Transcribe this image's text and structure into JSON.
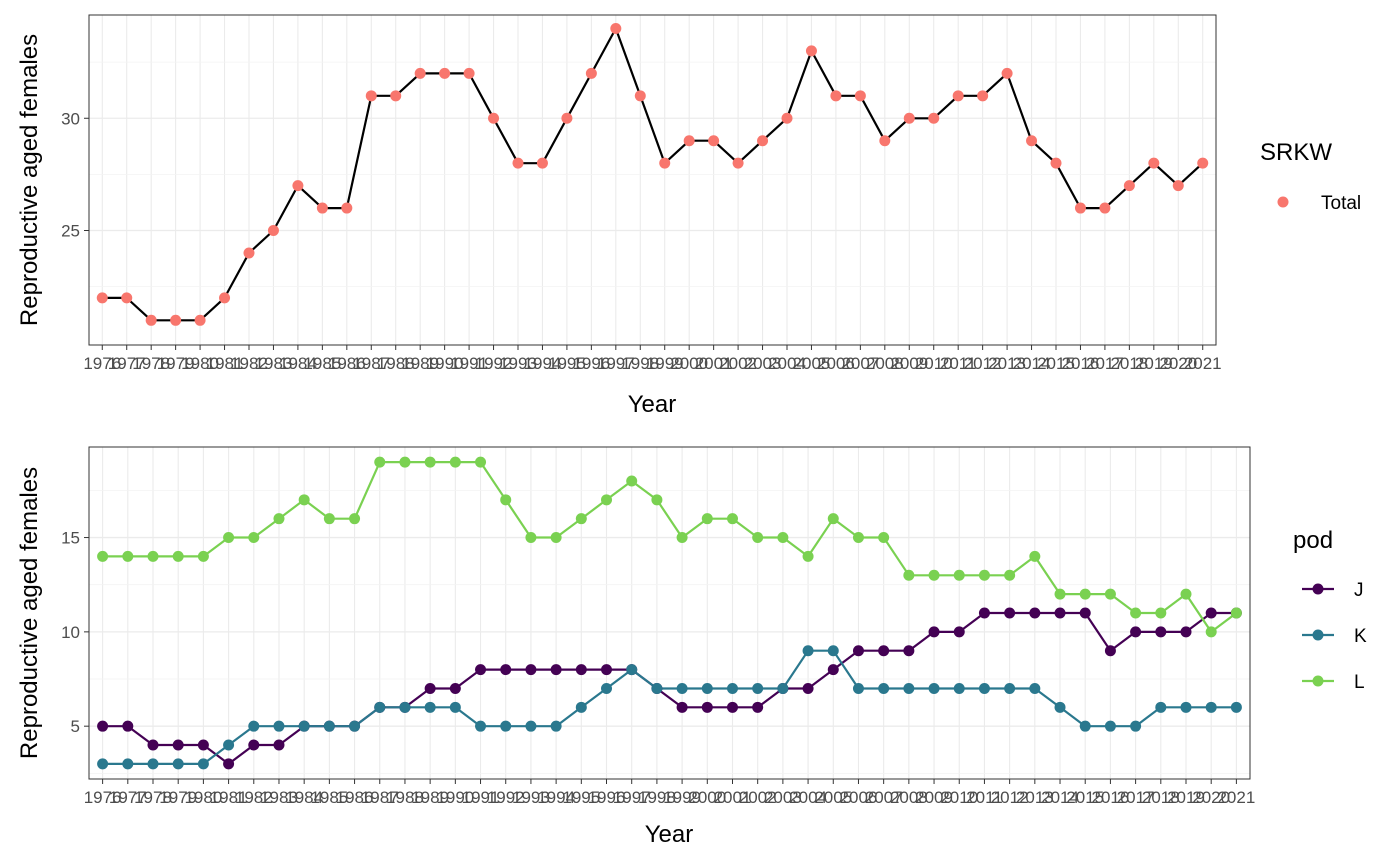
{
  "chart_data": [
    {
      "type": "line",
      "title": "",
      "xlabel": "Year",
      "ylabel": "Reproductive aged females",
      "xlim": [
        1976,
        2021
      ],
      "ylim": [
        19.9,
        34.6
      ],
      "yticks": [
        25,
        30
      ],
      "grid": true,
      "legend": {
        "title": "SRKW",
        "position": "right",
        "entries": [
          "Total"
        ]
      },
      "categories": [
        "1976",
        "1977",
        "1978",
        "1979",
        "1980",
        "1981",
        "1982",
        "1983",
        "1984",
        "1985",
        "1986",
        "1987",
        "1988",
        "1989",
        "1990",
        "1991",
        "1992",
        "1993",
        "1994",
        "1995",
        "1996",
        "1997",
        "1998",
        "1999",
        "2000",
        "2001",
        "2002",
        "2003",
        "2004",
        "2005",
        "2006",
        "2007",
        "2008",
        "2009",
        "2010",
        "2011",
        "2012",
        "2013",
        "2014",
        "2015",
        "2016",
        "2017",
        "2018",
        "2019",
        "2020",
        "2021"
      ],
      "series": [
        {
          "name": "Total",
          "color": "#f8766d",
          "line_color": "#000000",
          "values": [
            22,
            22,
            21,
            21,
            21,
            22,
            24,
            25,
            27,
            26,
            26,
            31,
            31,
            32,
            32,
            32,
            30,
            28,
            28,
            30,
            32,
            34,
            31,
            28,
            29,
            29,
            28,
            29,
            30,
            33,
            31,
            31,
            29,
            30,
            30,
            31,
            31,
            32,
            29,
            28,
            26,
            26,
            27,
            28,
            27,
            28
          ]
        }
      ]
    },
    {
      "type": "line",
      "title": "",
      "xlabel": "Year",
      "ylabel": "Reproductive aged females",
      "xlim": [
        1976,
        2021
      ],
      "ylim": [
        2.2,
        19.8
      ],
      "yticks": [
        5,
        10,
        15
      ],
      "grid": true,
      "legend": {
        "title": "pod",
        "position": "right",
        "entries": [
          "J",
          "K",
          "L"
        ]
      },
      "categories": [
        "1976",
        "1977",
        "1978",
        "1979",
        "1980",
        "1981",
        "1982",
        "1983",
        "1984",
        "1985",
        "1986",
        "1987",
        "1988",
        "1989",
        "1990",
        "1991",
        "1992",
        "1993",
        "1994",
        "1995",
        "1996",
        "1997",
        "1998",
        "1999",
        "2000",
        "2001",
        "2002",
        "2003",
        "2004",
        "2005",
        "2006",
        "2007",
        "2008",
        "2009",
        "2010",
        "2011",
        "2012",
        "2013",
        "2014",
        "2015",
        "2016",
        "2017",
        "2018",
        "2019",
        "2020",
        "2021"
      ],
      "series": [
        {
          "name": "J",
          "color": "#440154",
          "values": [
            5,
            5,
            4,
            4,
            4,
            3,
            4,
            4,
            5,
            5,
            5,
            6,
            6,
            7,
            7,
            8,
            8,
            8,
            8,
            8,
            8,
            8,
            7,
            6,
            6,
            6,
            6,
            7,
            7,
            8,
            9,
            9,
            9,
            10,
            10,
            11,
            11,
            11,
            11,
            11,
            9,
            10,
            10,
            10,
            11,
            11
          ]
        },
        {
          "name": "K",
          "color": "#2a788e",
          "values": [
            3,
            3,
            3,
            3,
            3,
            4,
            5,
            5,
            5,
            5,
            5,
            6,
            6,
            6,
            6,
            5,
            5,
            5,
            5,
            6,
            7,
            8,
            7,
            7,
            7,
            7,
            7,
            7,
            9,
            9,
            7,
            7,
            7,
            7,
            7,
            7,
            7,
            7,
            6,
            5,
            5,
            5,
            6,
            6,
            6,
            6
          ]
        },
        {
          "name": "L",
          "color": "#7ad151",
          "values": [
            14,
            14,
            14,
            14,
            14,
            15,
            15,
            16,
            17,
            16,
            16,
            19,
            19,
            19,
            19,
            19,
            17,
            15,
            15,
            16,
            17,
            18,
            17,
            15,
            16,
            16,
            15,
            15,
            14,
            16,
            15,
            15,
            13,
            13,
            13,
            13,
            13,
            14,
            12,
            12,
            12,
            11,
            11,
            12,
            10,
            11
          ]
        }
      ]
    }
  ]
}
